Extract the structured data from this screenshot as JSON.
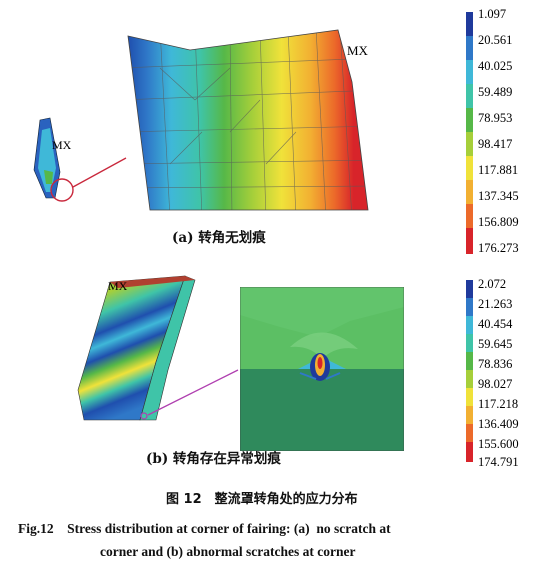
{
  "panel_a": {
    "caption": "(a) 转角无划痕",
    "mx_label_main": "MX",
    "mx_label_small": "MX",
    "legend": [
      "1.097",
      "20.561",
      "40.025",
      "59.489",
      "78.953",
      "98.417",
      "117.881",
      "137.345",
      "156.809",
      "176.273"
    ],
    "legend_colors": [
      "#1f3a9c",
      "#2f78c8",
      "#3fb8d8",
      "#3fc4a8",
      "#56b848",
      "#a6cf3a",
      "#f0e23a",
      "#f2b032",
      "#ec6a2a",
      "#d8242a"
    ]
  },
  "panel_b": {
    "caption": "(b) 转角存在异常划痕",
    "mx_label": "MX",
    "legend": [
      "2.072",
      "21.263",
      "40.454",
      "59.645",
      "78.836",
      "98.027",
      "117.218",
      "136.409",
      "155.600",
      "174.791"
    ],
    "legend_colors": [
      "#1f3a9c",
      "#2f78c8",
      "#3fb8d8",
      "#3fc4a8",
      "#56b848",
      "#a6cf3a",
      "#f0e23a",
      "#f2b032",
      "#ec6a2a",
      "#d8242a"
    ]
  },
  "figure": {
    "title_cn": "图 12　整流罩转角处的应力分布",
    "caption_en_line1": "Fig.12　Stress distribution at corner of fairing: (a)  no scratch at",
    "caption_en_line2": "corner and (b) abnormal scratches at corner"
  }
}
